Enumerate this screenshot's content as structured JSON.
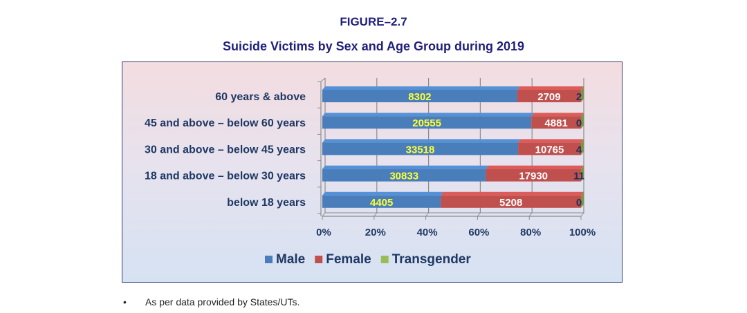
{
  "figure_label": "FIGURE–2.7",
  "footnote": {
    "bullet": "•",
    "text": "As per data provided by States/UTs."
  },
  "colors": {
    "male": "#4a7ebb",
    "female": "#c0504d",
    "transgender": "#9bbb59",
    "male_label": "#ffff33",
    "female_label": "#ffffff",
    "transgender_label": "#1f2d5c",
    "category_label": "#1f3864"
  },
  "chart_data": {
    "type": "bar",
    "orientation": "horizontal",
    "stacked": "percent",
    "title": "Suicide Victims by Sex and Age Group during 2019",
    "categories": [
      "60 years & above",
      "45 and above – below 60 years",
      "30 and above – below 45 years",
      "18 and above – below 30 years",
      "below 18 years"
    ],
    "series": [
      {
        "name": "Male",
        "values": [
          8302,
          20555,
          33518,
          30833,
          4405
        ]
      },
      {
        "name": "Female",
        "values": [
          2709,
          4881,
          10765,
          17930,
          5208
        ]
      },
      {
        "name": "Transgender",
        "values": [
          2,
          0,
          4,
          11,
          0
        ]
      }
    ],
    "x_ticks": [
      "0%",
      "20%",
      "40%",
      "60%",
      "80%",
      "100%"
    ],
    "xlim": [
      0,
      100
    ],
    "xlabel": "",
    "ylabel": "",
    "grid": true,
    "legend_position": "bottom"
  }
}
